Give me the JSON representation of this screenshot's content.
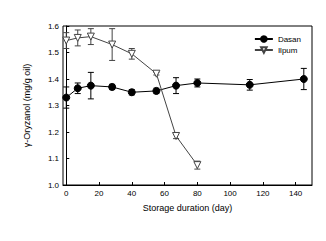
{
  "chart_data": {
    "type": "line",
    "x_label": "Storage duration (day)",
    "y_label": "γ-Oryzanol (mg/g oil)",
    "x": [
      0,
      7,
      15,
      28,
      40,
      55,
      67,
      80,
      112,
      145
    ],
    "series": [
      {
        "name": "Dasan",
        "color": "#000000",
        "marker": "filled_circle",
        "values": [
          1.33,
          1.365,
          1.375,
          1.37,
          1.35,
          1.355,
          1.375,
          1.385,
          1.378,
          1.4
        ],
        "errors": [
          0.04,
          0.02,
          0.05,
          0.01,
          0.01,
          0.01,
          0.03,
          0.015,
          0.02,
          0.04
        ]
      },
      {
        "name": "Ilpum",
        "color": "#444444",
        "marker": "open_triangle_down",
        "values": [
          1.545,
          1.555,
          1.56,
          1.53,
          1.495,
          1.42,
          1.185,
          1.075,
          null,
          null
        ],
        "errors": [
          0.03,
          0.03,
          0.03,
          0.06,
          0.02,
          0.005,
          0.01,
          0.015,
          null,
          null
        ]
      }
    ],
    "xlim": [
      -2,
      150
    ],
    "xticks": [
      0,
      20,
      40,
      60,
      80,
      100,
      120,
      140
    ],
    "ylim": [
      1.0,
      1.6
    ],
    "yticks": [
      {
        "value": 1.0,
        "label": "1.0"
      },
      1.1,
      1.2,
      1.3,
      1.4,
      1.5,
      1.6
    ],
    "legend": "upper right",
    "grid": false
  }
}
